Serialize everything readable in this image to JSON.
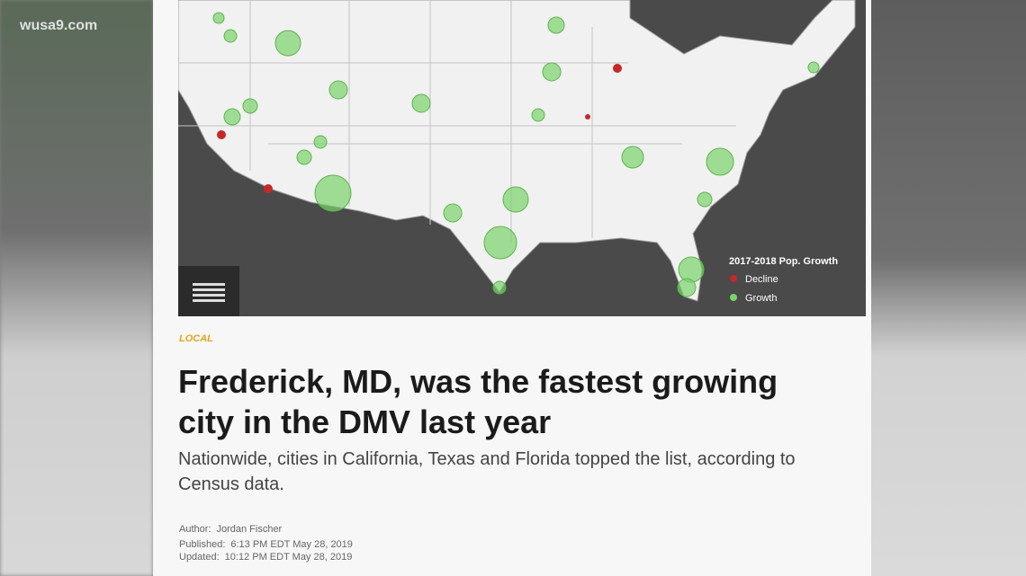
{
  "watermark": "wusa9.com",
  "map": {
    "legend": {
      "title": "2017-2018 Pop. Growth",
      "items": [
        "Decline",
        "Growth"
      ]
    }
  },
  "article": {
    "section": "LOCAL",
    "headline": "Frederick, MD, was the fastest growing city in the DMV last year",
    "subheadline": "Nationwide, cities in California, Texas and Florida topped the list, according to Census data.",
    "byline": {
      "author_label": "Author:",
      "author": "Jordan Fischer",
      "published_label": "Published:",
      "published": "6:13 PM EDT May 28, 2019",
      "updated_label": "Updated:",
      "updated": "10:12 PM EDT May 28, 2019"
    }
  }
}
